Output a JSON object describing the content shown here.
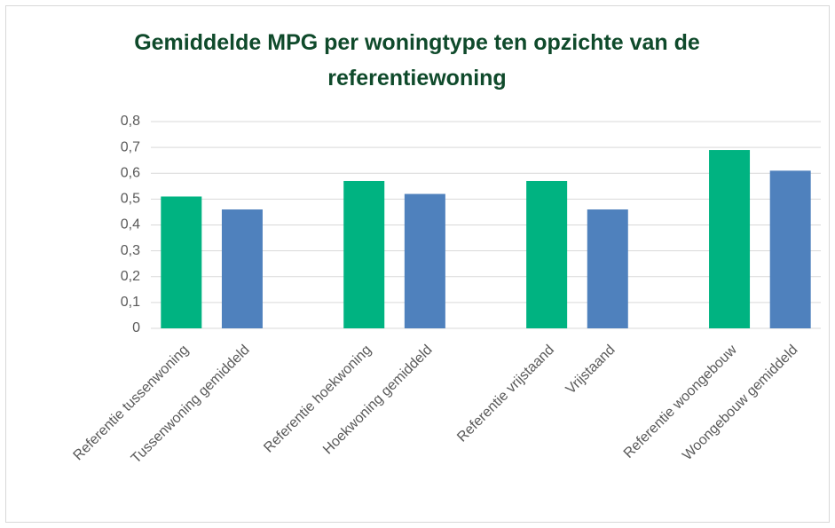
{
  "chart_data": {
    "type": "bar",
    "title": "Gemiddelde MPG per woningtype ten opzichte van de referentiewoning",
    "categories": [
      "Referentie tussenwoning",
      "Tussenwoning gemiddeld",
      null,
      "Referentie hoekwoning",
      "Hoekwoning gemiddeld",
      null,
      "Referentie vrijstaand",
      "Vrijstaand",
      null,
      "Referentie woongebouw",
      "Woongebouw gemiddeld"
    ],
    "values": [
      0.51,
      0.46,
      null,
      0.57,
      0.52,
      null,
      0.57,
      0.46,
      null,
      0.69,
      0.61
    ],
    "colors": [
      "#00b381",
      "#4f81bd",
      null,
      "#00b381",
      "#4f81bd",
      null,
      "#00b381",
      "#4f81bd",
      null,
      "#00b381",
      "#4f81bd"
    ],
    "ylim": [
      0,
      0.8
    ],
    "yticks": [
      0,
      {
        "value": 0.1,
        "label": "0,1"
      },
      {
        "value": 0.2,
        "label": "0,2"
      },
      {
        "value": 0.3,
        "label": "0,3"
      },
      {
        "value": 0.4,
        "label": "0,4"
      },
      {
        "value": 0.5,
        "label": "0,5"
      },
      {
        "value": 0.6,
        "label": "0,6"
      },
      {
        "value": 0.7,
        "label": "0,7"
      },
      {
        "value": 0.8,
        "label": "0,8"
      }
    ],
    "grid": true
  }
}
